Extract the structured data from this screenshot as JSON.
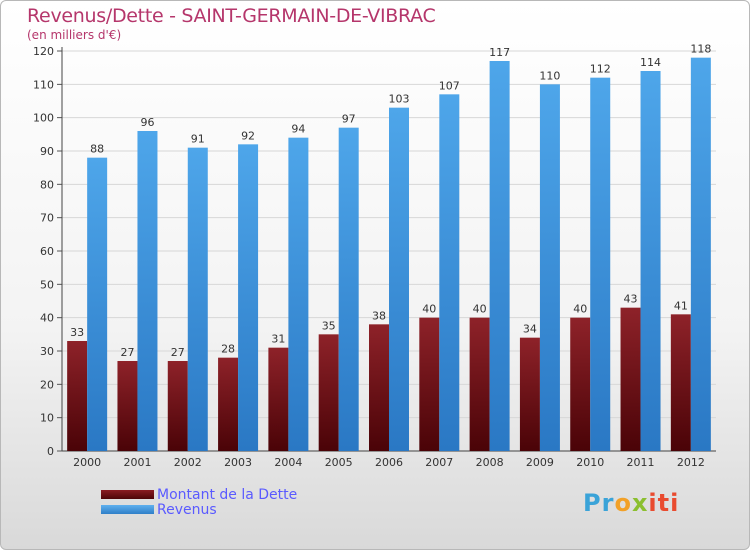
{
  "header": {
    "title": "Revenus/Dette - SAINT-GERMAIN-DE-VIBRAC",
    "subtitle": "(en milliers d'€)"
  },
  "chart_data": {
    "type": "bar",
    "categories": [
      "2000",
      "2001",
      "2002",
      "2003",
      "2004",
      "2005",
      "2006",
      "2007",
      "2008",
      "2009",
      "2010",
      "2011",
      "2012"
    ],
    "series": [
      {
        "name": "Montant de la Dette",
        "color": "#6b0e14",
        "values": [
          33,
          27,
          27,
          28,
          31,
          35,
          38,
          40,
          40,
          34,
          40,
          43,
          41
        ]
      },
      {
        "name": "Revenus",
        "color": "#3f95dd",
        "values": [
          88,
          96,
          91,
          92,
          94,
          97,
          103,
          107,
          117,
          110,
          112,
          114,
          118
        ]
      }
    ],
    "yticks": [
      0,
      10,
      20,
      30,
      40,
      50,
      60,
      70,
      80,
      90,
      100,
      110,
      120
    ],
    "ylim": [
      0,
      120
    ],
    "grid": "horizontal",
    "legend_position": "bottom-left"
  },
  "logo": {
    "letters": [
      "Pr",
      "o",
      "x",
      "iti"
    ]
  }
}
